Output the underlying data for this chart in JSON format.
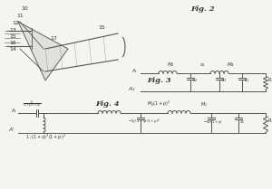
{
  "fig2_label": "Fig. 2",
  "fig3_label": "Fig. 3",
  "fig4_label": "Fig. 4",
  "bg_color": "#f5f5f0",
  "line_color": "#555555",
  "text_color": "#333333"
}
